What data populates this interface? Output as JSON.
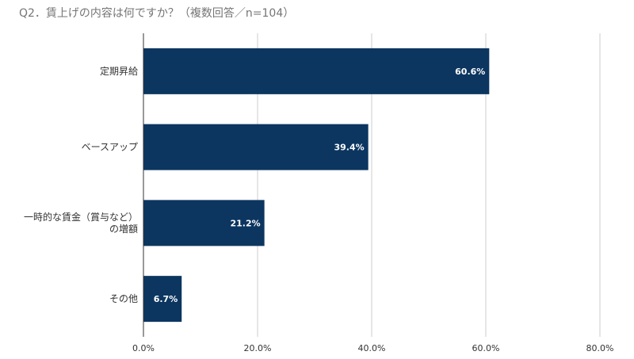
{
  "chart_data": {
    "type": "bar",
    "orientation": "horizontal",
    "title": "Q2．賃上げの内容は何ですか？（複数回答／n=104）",
    "categories": [
      "定期昇給",
      "ベースアップ",
      "一時的な賃金（賞与など）の増額",
      "その他"
    ],
    "category_label_lines": [
      [
        "定期昇給"
      ],
      [
        "ベースアップ"
      ],
      [
        "一時的な賃金（賞与など）",
        "の増額"
      ],
      [
        "その他"
      ]
    ],
    "values": [
      60.6,
      39.4,
      21.2,
      6.7
    ],
    "data_labels": [
      "60.6%",
      "39.4%",
      "21.2%",
      "6.7%"
    ],
    "xlim": [
      0,
      80
    ],
    "xticks": [
      0,
      20,
      40,
      60,
      80
    ],
    "xtick_labels": [
      "0.0%",
      "20.0%",
      "40.0%",
      "60.0%",
      "80.0%"
    ],
    "xlabel": "",
    "ylabel": "",
    "grid": true,
    "legend": "none",
    "bar_color": "#0c3660",
    "grid_color": "#cccccc",
    "axis_color": "#333333"
  }
}
